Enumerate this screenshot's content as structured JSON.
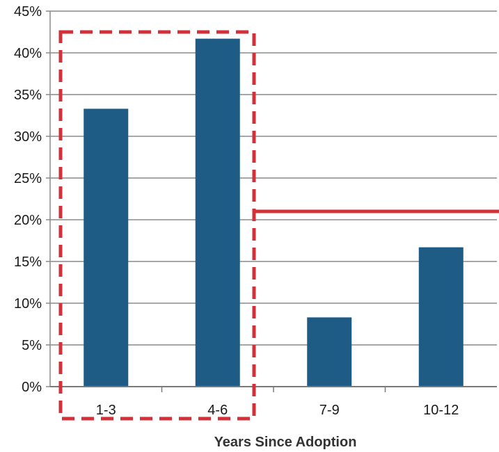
{
  "chart_data": {
    "type": "bar",
    "categories": [
      "1-3",
      "4-6",
      "7-9",
      "10-12"
    ],
    "values": [
      33.3,
      41.7,
      8.3,
      16.7
    ],
    "xlabel": "Years Since Adoption",
    "ylabel": "",
    "ylim": [
      0,
      45
    ],
    "ytick_step": 5,
    "ytick_format": "percent",
    "grid": "horizontal",
    "bar_color": "#1f5c85",
    "annotations": {
      "reference_line": {
        "value": 21,
        "from_category_index": 2,
        "color": "#d3313a"
      },
      "highlight_box": {
        "categories": [
          "1-3",
          "4-6"
        ],
        "style": "dashed",
        "color": "#d3313a"
      }
    }
  }
}
